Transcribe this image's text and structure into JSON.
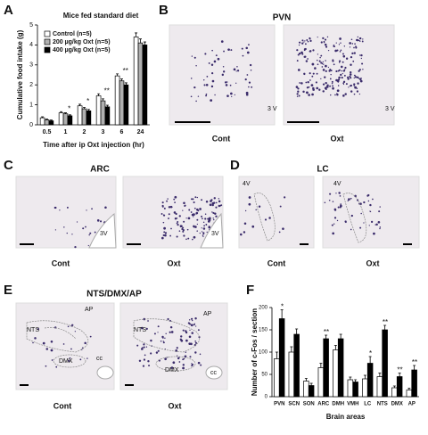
{
  "chart_data": [
    {
      "type": "bar",
      "title": "Mice fed standard diet",
      "xlabel": "Time after ip Oxt injection (hr)",
      "ylabel": "Cumulative food intake (g)",
      "categories": [
        "0.5",
        "1",
        "2",
        "3",
        "6",
        "24"
      ],
      "ylim": [
        0,
        5
      ],
      "yticks": [
        0,
        1,
        2,
        3,
        4,
        5
      ],
      "series": [
        {
          "name": "Control (n=5)",
          "color": "#ffffff",
          "values": [
            0.35,
            0.6,
            0.95,
            1.45,
            2.45,
            4.4
          ],
          "errors": [
            0.05,
            0.06,
            0.08,
            0.1,
            0.1,
            0.2
          ]
        },
        {
          "name": "200 µg/kg Oxt (n=5)",
          "color": "#b0b0b0",
          "values": [
            0.25,
            0.55,
            0.8,
            1.2,
            2.2,
            4.1
          ],
          "errors": [
            0.04,
            0.05,
            0.07,
            0.1,
            0.1,
            0.2
          ]
        },
        {
          "name": "400 µg/kg Oxt (n=5)",
          "color": "#000000",
          "values": [
            0.2,
            0.45,
            0.7,
            0.9,
            2.0,
            4.0
          ],
          "errors": [
            0.04,
            0.05,
            0.07,
            0.08,
            0.1,
            0.15
          ]
        }
      ],
      "annotations": [
        {
          "text": "*",
          "at": "1"
        },
        {
          "text": "*",
          "at": "2"
        },
        {
          "text": "**",
          "at": "3"
        },
        {
          "text": "**",
          "at": "6"
        }
      ]
    },
    {
      "type": "bar",
      "xlabel": "Brain areas",
      "ylabel": "Number of c-Fos / section",
      "categories": [
        "PVN",
        "SCN",
        "SON",
        "ARC",
        "DMH",
        "VMH",
        "LC",
        "NTS",
        "DMX",
        "AP"
      ],
      "ylim": [
        0,
        200
      ],
      "yticks": [
        0,
        50,
        100,
        150,
        200
      ],
      "series": [
        {
          "color": "#ffffff",
          "values": [
            85,
            100,
            35,
            65,
            105,
            38,
            40,
            45,
            20,
            15
          ],
          "errors": [
            15,
            12,
            6,
            10,
            10,
            6,
            8,
            8,
            4,
            4
          ]
        },
        {
          "color": "#000000",
          "values": [
            175,
            140,
            25,
            130,
            130,
            33,
            75,
            150,
            45,
            60
          ],
          "errors": [
            20,
            12,
            5,
            8,
            10,
            5,
            15,
            10,
            8,
            10
          ]
        }
      ],
      "annotations": [
        {
          "text": "*",
          "at": "PVN"
        },
        {
          "text": "**",
          "at": "ARC"
        },
        {
          "text": "*",
          "at": "LC"
        },
        {
          "text": "**",
          "at": "NTS"
        },
        {
          "text": "**",
          "at": "DMX"
        },
        {
          "text": "**",
          "at": "AP"
        }
      ]
    }
  ],
  "panels": {
    "a": "A",
    "b": {
      "letter": "B",
      "title": "PVN",
      "ventricle": "3 V",
      "cont": "Cont",
      "oxt": "Oxt"
    },
    "c": {
      "letter": "C",
      "title": "ARC",
      "ventricle": "3V",
      "cont": "Cont",
      "oxt": "Oxt"
    },
    "d": {
      "letter": "D",
      "title": "LC",
      "ventricle": "4V",
      "cont": "Cont",
      "oxt": "Oxt"
    },
    "e": {
      "letter": "E",
      "title": "NTS/DMX/AP",
      "nts": "NTS",
      "ap": "AP",
      "dmx": "DMX",
      "cc": "cc",
      "cont": "Cont",
      "oxt": "Oxt"
    },
    "f": "F"
  }
}
